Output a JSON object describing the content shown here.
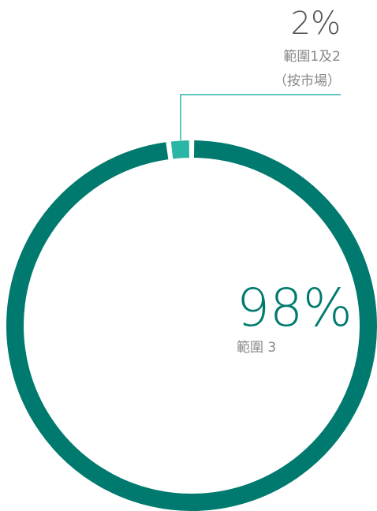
{
  "chart_data": {
    "type": "donut",
    "categories": [
      "範圍1及2（按市場）",
      "範圍 3"
    ],
    "values": [
      2,
      98
    ],
    "value_labels": [
      "2%",
      "98%"
    ],
    "colors": [
      "#2bb5a5",
      "#007a6e"
    ]
  }
}
